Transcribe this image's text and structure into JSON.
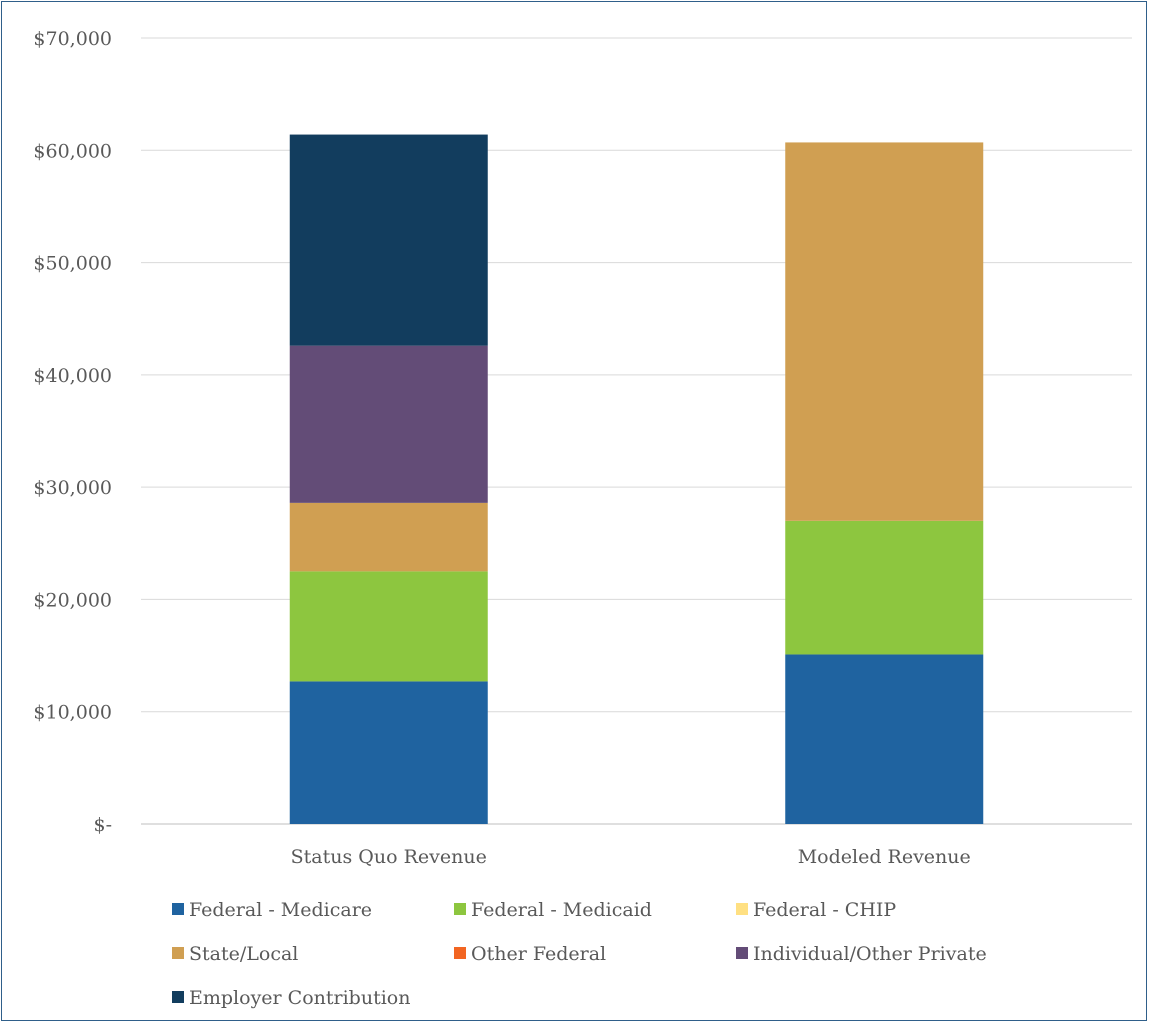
{
  "chart_data": {
    "type": "bar",
    "stacked": true,
    "categories": [
      "Status Quo Revenue",
      "Modeled Revenue"
    ],
    "series": [
      {
        "name": "Federal - Medicare",
        "color": "#1f63a0",
        "values": [
          12700,
          15100
        ]
      },
      {
        "name": "Federal - Medicaid",
        "color": "#8dc63f",
        "values": [
          9800,
          11900
        ]
      },
      {
        "name": "Federal - CHIP",
        "color": "#ffe082",
        "values": [
          0,
          0
        ]
      },
      {
        "name": "State/Local",
        "color": "#d09f52",
        "values": [
          6100,
          33700
        ]
      },
      {
        "name": "Other Federal",
        "color": "#f26522",
        "values": [
          0,
          0
        ]
      },
      {
        "name": "Individual/Other Private",
        "color": "#634c77",
        "values": [
          14000,
          0
        ]
      },
      {
        "name": "Employer Contribution",
        "color": "#123d5e",
        "values": [
          18800,
          0
        ]
      }
    ],
    "ylim": [
      0,
      70000
    ],
    "yticks": [
      0,
      10000,
      20000,
      30000,
      40000,
      50000,
      60000,
      70000
    ],
    "ytick_labels": [
      "$-",
      "$10,000",
      "$20,000",
      "$30,000",
      "$40,000",
      "$50,000",
      "$60,000",
      "$70,000"
    ],
    "grid": true,
    "legend_position": "bottom"
  }
}
